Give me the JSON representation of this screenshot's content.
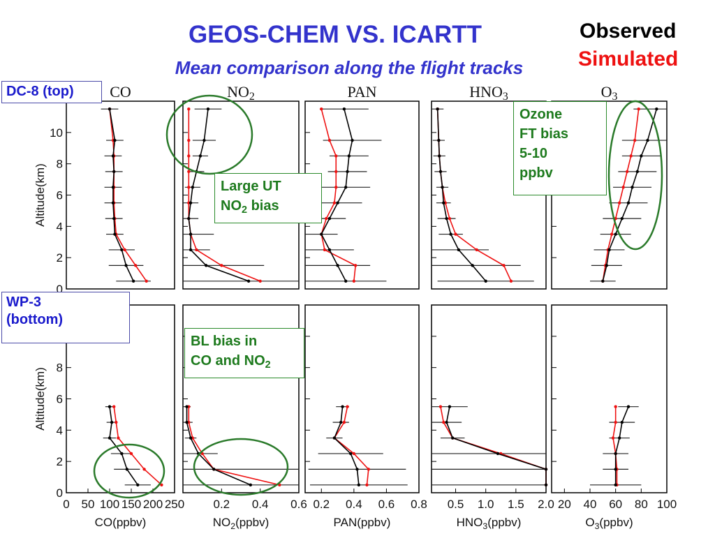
{
  "title": "GEOS-CHEM VS. ICARTT",
  "subtitle": "Mean comparison along the flight tracks",
  "legend": {
    "observed": "Observed",
    "simulated": "Simulated"
  },
  "colors": {
    "observed": "#000000",
    "simulated": "#ee1111",
    "title": "#3333cc",
    "annotation_green": "#1d7a1d",
    "annotation_blue": "#1a1acc"
  },
  "labels": {
    "dc8": "DC-8 (top)",
    "wp3": "WP-3 (bottom)",
    "ozone_bias": "Ozone FT bias 5-10 ppbv",
    "ut_bias": "Large UT NO2 bias",
    "bl_bias": "BL bias in CO and NO2"
  },
  "chart_data": [
    {
      "type": "line",
      "panel": "top",
      "species_title": "CO",
      "xlabel": "CO(ppbv)",
      "ylabel": "Altitude(km)",
      "xlim": [
        0,
        250
      ],
      "ylim": [
        0,
        12
      ],
      "xticks": [
        "0",
        "50",
        "100",
        "150",
        "200",
        "250"
      ],
      "yticks": [
        "0",
        "2",
        "4",
        "6",
        "8",
        "10"
      ],
      "altitude": [
        0.5,
        1.5,
        2.5,
        3.5,
        4.5,
        5.5,
        6.5,
        7.5,
        8.5,
        9.5,
        11.5
      ],
      "series": [
        {
          "name": "Observed",
          "values": [
            155,
            138,
            128,
            112,
            110,
            108,
            108,
            110,
            108,
            112,
            100
          ],
          "error": [
            40,
            40,
            30,
            20,
            20,
            20,
            20,
            20,
            20,
            20,
            20
          ]
        },
        {
          "name": "Simulated",
          "values": [
            185,
            160,
            135,
            115,
            112,
            110,
            110,
            110,
            110,
            108,
            100
          ],
          "error": []
        }
      ]
    },
    {
      "type": "line",
      "panel": "top",
      "species_title": "NO2",
      "xlabel": "NO2(ppbv)",
      "ylabel": "",
      "xlim": [
        0,
        0.6
      ],
      "ylim": [
        0,
        12
      ],
      "xticks": [
        "0.2",
        "0.4",
        "0.6"
      ],
      "yticks": [],
      "altitude": [
        0.5,
        1.5,
        2.5,
        3.5,
        4.5,
        5.5,
        6.5,
        7.5,
        8.5,
        9.5,
        11.5
      ],
      "series": [
        {
          "name": "Observed",
          "values": [
            0.34,
            0.12,
            0.04,
            0.04,
            0.03,
            0.04,
            0.05,
            0.07,
            0.09,
            0.11,
            0.13
          ],
          "error": [
            0.4,
            0.3,
            0.1,
            0.12,
            0.05,
            0.04,
            0.04,
            0.04,
            0.04,
            0.06,
            0.07
          ]
        },
        {
          "name": "Simulated",
          "values": [
            0.4,
            0.2,
            0.07,
            0.04,
            0.03,
            0.03,
            0.03,
            0.03,
            0.03,
            0.03,
            0.03
          ],
          "error": []
        }
      ]
    },
    {
      "type": "line",
      "panel": "top",
      "species_title": "PAN",
      "xlabel": "PAN(ppbv)",
      "ylabel": "",
      "xlim": [
        0.1,
        0.8
      ],
      "ylim": [
        0,
        12
      ],
      "xticks": [
        "0.2",
        "0.4",
        "0.6",
        "0.8"
      ],
      "yticks": [],
      "altitude": [
        0.5,
        1.5,
        2.5,
        3.5,
        4.5,
        5.5,
        6.5,
        7.5,
        8.5,
        9.5,
        11.5
      ],
      "series": [
        {
          "name": "Observed",
          "values": [
            0.35,
            0.3,
            0.25,
            0.2,
            0.25,
            0.3,
            0.35,
            0.36,
            0.37,
            0.39,
            0.34
          ],
          "error": [
            0.25,
            0.2,
            0.15,
            0.1,
            0.1,
            0.15,
            0.15,
            0.12,
            0.12,
            0.18,
            0.15
          ]
        },
        {
          "name": "Simulated",
          "values": [
            0.4,
            0.41,
            0.22,
            0.2,
            0.23,
            0.28,
            0.29,
            0.29,
            0.29,
            0.25,
            0.2
          ],
          "error": []
        }
      ]
    },
    {
      "type": "line",
      "panel": "top",
      "species_title": "HNO3",
      "xlabel": "HNO3(ppbv)",
      "ylabel": "",
      "xlim": [
        0.1,
        2.0
      ],
      "ylim": [
        0,
        12
      ],
      "xticks": [
        "0.5",
        "1.0",
        "1.5",
        "2.0"
      ],
      "yticks": [],
      "altitude": [
        0.5,
        1.5,
        2.5,
        3.5,
        4.5,
        5.5,
        6.5,
        7.5,
        8.5,
        9.5,
        11.5
      ],
      "series": [
        {
          "name": "Observed",
          "values": [
            1.0,
            0.78,
            0.55,
            0.42,
            0.35,
            0.3,
            0.28,
            0.25,
            0.23,
            0.22,
            0.2
          ],
          "error": [
            0.8,
            0.8,
            0.5,
            0.2,
            0.15,
            0.12,
            0.1,
            0.1,
            0.1,
            0.1,
            0.1
          ]
        },
        {
          "name": "Simulated",
          "values": [
            1.42,
            1.3,
            0.85,
            0.5,
            0.4,
            0.33,
            0.28,
            0.25,
            0.23,
            0.22,
            0.2
          ],
          "error": []
        }
      ]
    },
    {
      "type": "line",
      "panel": "top",
      "species_title": "O3",
      "xlabel": "O3(ppbv)",
      "ylabel": "",
      "xlim": [
        10,
        100
      ],
      "ylim": [
        0,
        12
      ],
      "xticks": [
        "20",
        "40",
        "60",
        "80",
        "100"
      ],
      "yticks": [],
      "altitude": [
        0.5,
        1.5,
        2.5,
        3.5,
        4.5,
        5.5,
        6.5,
        7.5,
        8.5,
        9.5,
        11.5
      ],
      "series": [
        {
          "name": "Observed",
          "values": [
            50,
            53,
            55,
            60,
            65,
            70,
            73,
            77,
            80,
            85,
            92
          ],
          "error": [
            10,
            12,
            12,
            12,
            15,
            15,
            15,
            15,
            15,
            20,
            18
          ]
        },
        {
          "name": "Simulated",
          "values": [
            50,
            52,
            54,
            57,
            60,
            63,
            66,
            69,
            72,
            75,
            78
          ],
          "error": []
        }
      ]
    },
    {
      "type": "line",
      "panel": "bottom",
      "species_title": "",
      "xlabel": "CO(ppbv)",
      "ylabel": "Altitude(km)",
      "xlim": [
        0,
        250
      ],
      "ylim": [
        0,
        12
      ],
      "xticks": [
        "0",
        "50",
        "100",
        "150",
        "200",
        "250"
      ],
      "yticks": [
        "0",
        "2",
        "4",
        "6",
        "8",
        "10"
      ],
      "altitude": [
        0.5,
        1.5,
        2.5,
        3.5,
        4.5,
        5.5
      ],
      "series": [
        {
          "name": "Observed",
          "values": [
            165,
            140,
            128,
            100,
            105,
            100
          ],
          "error": [
            30,
            30,
            25,
            15,
            12,
            10
          ]
        },
        {
          "name": "Simulated",
          "values": [
            220,
            180,
            150,
            120,
            115,
            110
          ],
          "error": []
        }
      ]
    },
    {
      "type": "line",
      "panel": "bottom",
      "species_title": "",
      "xlabel": "NO2(ppbv)",
      "ylabel": "",
      "xlim": [
        0,
        0.6
      ],
      "ylim": [
        0,
        12
      ],
      "xticks": [
        "0.2",
        "0.4",
        "0.6"
      ],
      "yticks": [],
      "altitude": [
        0.5,
        1.5,
        2.5,
        3.5,
        4.5,
        5.5
      ],
      "series": [
        {
          "name": "Observed",
          "values": [
            0.35,
            0.16,
            0.08,
            0.04,
            0.02,
            0.02
          ],
          "error": [
            0.6,
            0.5,
            0.1,
            0.03,
            0.03,
            0.02
          ]
        },
        {
          "name": "Simulated",
          "values": [
            0.5,
            0.16,
            0.1,
            0.05,
            0.03,
            0.03
          ],
          "error": []
        }
      ]
    },
    {
      "type": "line",
      "panel": "bottom",
      "species_title": "",
      "xlabel": "PAN(ppbv)",
      "ylabel": "",
      "xlim": [
        0.1,
        0.8
      ],
      "ylim": [
        0,
        12
      ],
      "xticks": [
        "0.2",
        "0.4",
        "0.6",
        "0.8"
      ],
      "yticks": [],
      "altitude": [
        0.5,
        1.5,
        2.5,
        3.5,
        4.5,
        5.5
      ],
      "series": [
        {
          "name": "Observed",
          "values": [
            0.43,
            0.42,
            0.38,
            0.28,
            0.32,
            0.33
          ],
          "error": [
            0.3,
            0.3,
            0.2,
            0.05,
            0.05,
            0.04
          ]
        },
        {
          "name": "Simulated",
          "values": [
            0.48,
            0.49,
            0.4,
            0.28,
            0.34,
            0.36
          ],
          "error": []
        }
      ]
    },
    {
      "type": "line",
      "panel": "bottom",
      "species_title": "",
      "xlabel": "HNO3(ppbv)",
      "ylabel": "",
      "xlim": [
        0.1,
        2.0
      ],
      "ylim": [
        0,
        12
      ],
      "xticks": [
        "0.5",
        "1.0",
        "1.5",
        "2.0"
      ],
      "yticks": [],
      "altitude": [
        0.5,
        1.5,
        2.5,
        3.5,
        4.5,
        5.5
      ],
      "series": [
        {
          "name": "Observed",
          "values": [
            2.0,
            2.0,
            1.2,
            0.45,
            0.35,
            0.4
          ],
          "error": [
            1.9,
            1.9,
            1.5,
            0.2,
            0.25,
            0.3
          ]
        },
        {
          "name": "Simulated",
          "values": [
            2.0,
            2.0,
            1.25,
            0.45,
            0.3,
            0.25
          ],
          "error": []
        }
      ]
    },
    {
      "type": "line",
      "panel": "bottom",
      "species_title": "",
      "xlabel": "O3(ppbv)",
      "ylabel": "",
      "xlim": [
        10,
        100
      ],
      "ylim": [
        0,
        12
      ],
      "xticks": [
        "20",
        "40",
        "60",
        "80",
        "100"
      ],
      "yticks": [],
      "altitude": [
        0.5,
        1.5,
        2.5,
        3.5,
        4.5,
        5.5
      ],
      "series": [
        {
          "name": "Observed",
          "values": [
            60,
            60,
            60,
            63,
            65,
            70
          ],
          "error": [
            20,
            10,
            10,
            8,
            10,
            8
          ]
        },
        {
          "name": "Simulated",
          "values": [
            61,
            61,
            60,
            58,
            60,
            60
          ],
          "error": []
        }
      ]
    }
  ]
}
